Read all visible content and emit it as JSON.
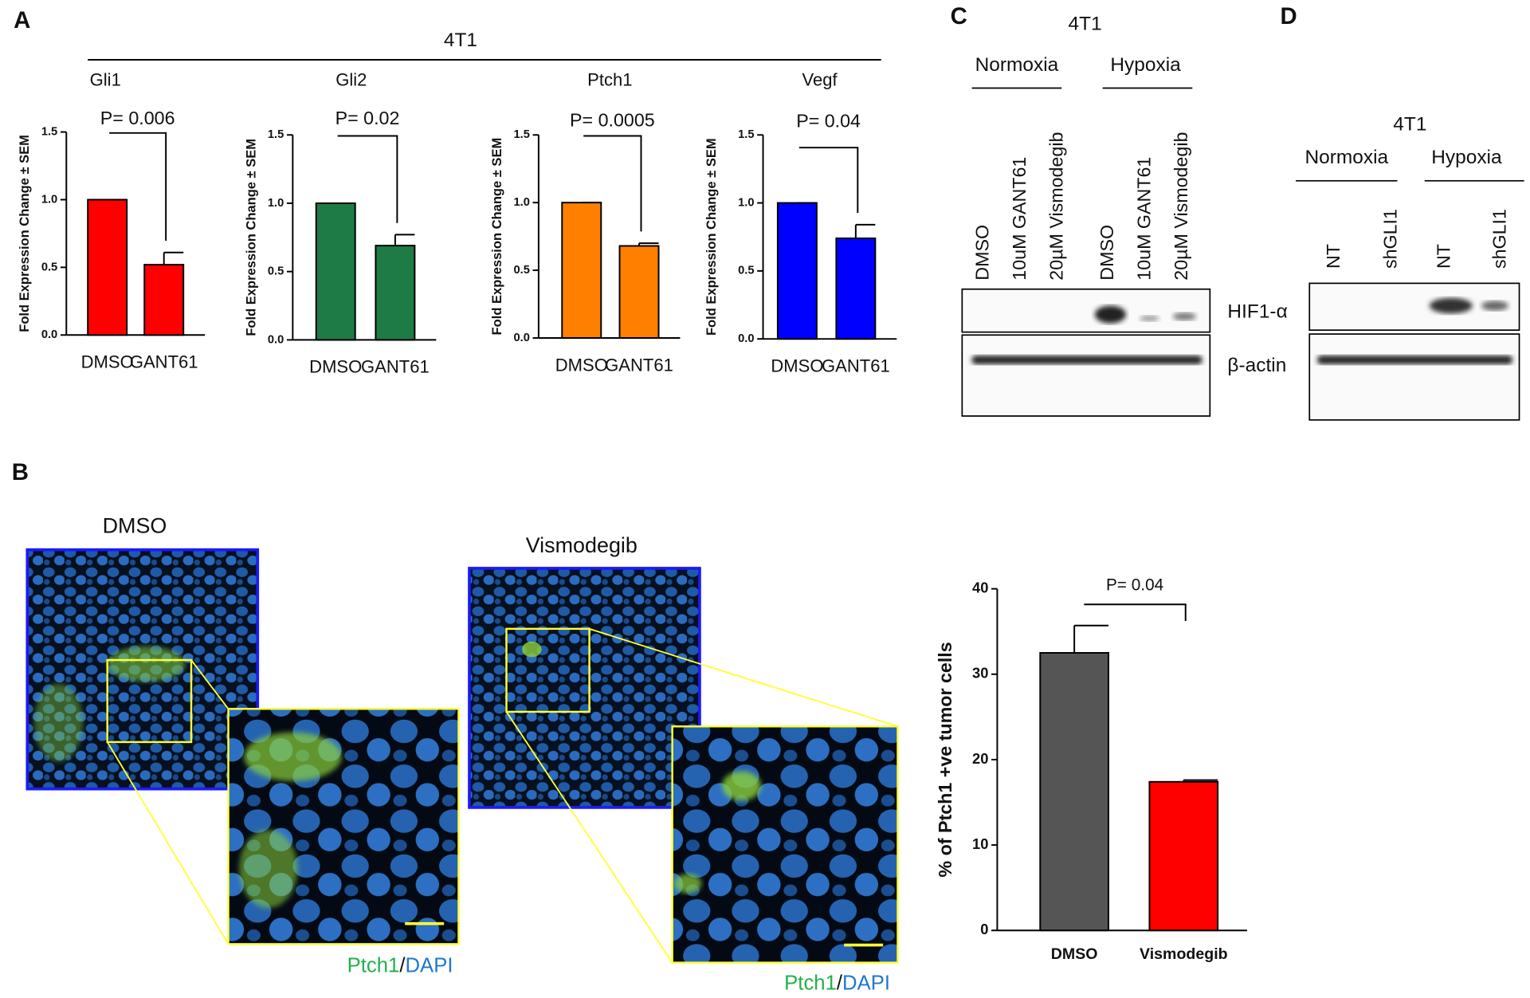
{
  "panel_labels": [
    "A",
    "B",
    "C",
    "D"
  ],
  "panel_a": {
    "cell_line": "4T1"
  },
  "chart_data": [
    {
      "type": "bar",
      "title": "Gli1",
      "y_label": "Fold Expression Change ± SEM",
      "categories": [
        "DMSO",
        "GANT61"
      ],
      "values": [
        1.0,
        0.52
      ],
      "errors": [
        0,
        0.09
      ],
      "color": "#ff0000",
      "ylim": [
        0,
        1.5
      ],
      "yticks": [
        {
          "value": 0,
          "label": "0.0"
        },
        0.5,
        {
          "value": 1,
          "label": "1.0"
        },
        1.5
      ],
      "annotation": "P= 0.006"
    },
    {
      "type": "bar",
      "title": "Gli2",
      "y_label": "Fold Expression Change ± SEM",
      "categories": [
        "DMSO",
        "GANT61"
      ],
      "values": [
        1.0,
        0.69
      ],
      "errors": [
        0,
        0.08
      ],
      "color": "#1e7b45",
      "ylim": [
        0,
        1.5
      ],
      "yticks": [
        {
          "value": 0,
          "label": "0.0"
        },
        0.5,
        {
          "value": 1,
          "label": "1.0"
        },
        1.5
      ],
      "annotation": "P= 0.02"
    },
    {
      "type": "bar",
      "title": "Ptch1",
      "y_label": "Fold Expression Change ± SEM",
      "categories": [
        "DMSO",
        "GANT61"
      ],
      "values": [
        1.0,
        0.68
      ],
      "errors": [
        0,
        0.02
      ],
      "color": "#ff8000",
      "ylim": [
        0,
        1.5
      ],
      "yticks": [
        {
          "value": 0,
          "label": "0.0"
        },
        0.5,
        {
          "value": 1,
          "label": "1.0"
        },
        1.5
      ],
      "annotation": "P= 0.0005"
    },
    {
      "type": "bar",
      "title": "Vegf",
      "y_label": "Fold Expression Change ± SEM",
      "categories": [
        "DMSO",
        "GANT61"
      ],
      "values": [
        1.0,
        0.74
      ],
      "errors": [
        0,
        0.1
      ],
      "color": "#0000ff",
      "ylim": [
        0,
        1.5
      ],
      "yticks": [
        {
          "value": 0,
          "label": "0.0"
        },
        0.5,
        {
          "value": 1,
          "label": "1.0"
        },
        1.5
      ],
      "annotation": "P= 0.04"
    },
    {
      "type": "bar",
      "y_label": "% of Ptch1 +ve tumor cells",
      "categories": [
        "DMSO",
        "Vismodegib"
      ],
      "values": [
        32.5,
        17.4
      ],
      "errors": [
        3.2,
        0.2
      ],
      "colors": [
        "#555555",
        "#ff0000"
      ],
      "ylim": [
        0,
        40
      ],
      "yticks": [
        0,
        10,
        20,
        30,
        40
      ],
      "annotation": "P= 0.04"
    }
  ],
  "microscopy": {
    "titles": [
      "DMSO",
      "Vismodegib"
    ],
    "captions": [
      {
        "stain": "Ptch1",
        "sep": "/",
        "counter": "DAPI"
      },
      {
        "stain": "Ptch1",
        "sep": "/",
        "counter": "DAPI"
      }
    ]
  },
  "blot_c": {
    "cell_line": "4T1",
    "groups": [
      "Normoxia",
      "Hypoxia"
    ],
    "lanes": [
      "DMSO",
      "10uM GANT61",
      "20µM Vismodegib",
      "DMSO",
      "10uM GANT61",
      "20µM Vismodegib"
    ],
    "bands": [
      "HIF1-α",
      "β-actin"
    ]
  },
  "blot_d": {
    "cell_line": "4T1",
    "groups": [
      "Normoxia",
      "Hypoxia"
    ],
    "lanes": [
      "NT",
      "shGLI1",
      "NT",
      "shGLI1"
    ],
    "bands": [
      "HIF1-α",
      "β-actin"
    ]
  }
}
